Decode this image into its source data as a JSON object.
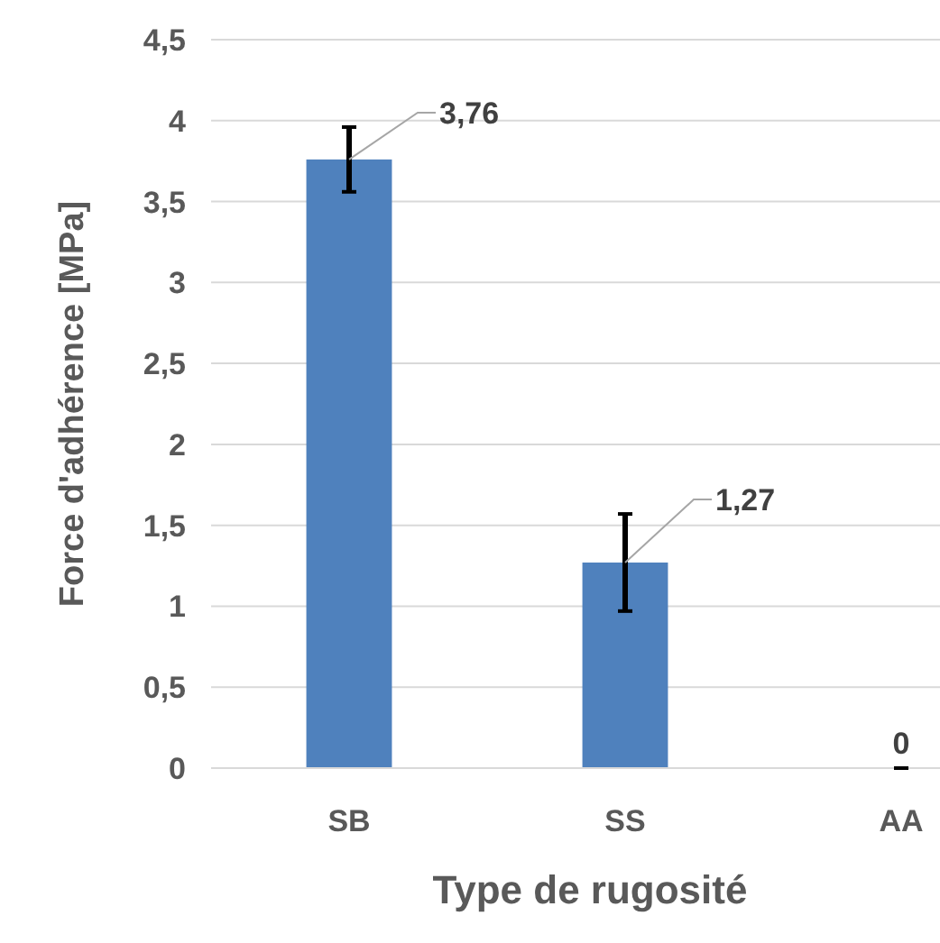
{
  "chart_data": {
    "type": "bar",
    "xlabel": "Type de rugosité",
    "ylabel": "Force d'adhérence [MPa]",
    "categories": [
      "SB",
      "SS",
      "AA"
    ],
    "values": [
      3.76,
      1.27,
      0
    ],
    "errors": [
      0.2,
      0.3,
      0
    ],
    "value_labels": [
      "3,76",
      "1,27",
      "0"
    ],
    "color": "#4f81bd",
    "ylim": [
      0,
      4.5
    ],
    "yticks": [
      0,
      {
        "value": 0.5,
        "label": "0,5"
      },
      1,
      {
        "value": 1.5,
        "label": "1,5"
      },
      2,
      {
        "value": 2.5,
        "label": "2,5"
      },
      3,
      {
        "value": 3.5,
        "label": "3,5"
      },
      4,
      {
        "value": 4.5,
        "label": "4,5"
      }
    ],
    "grid": "y"
  }
}
